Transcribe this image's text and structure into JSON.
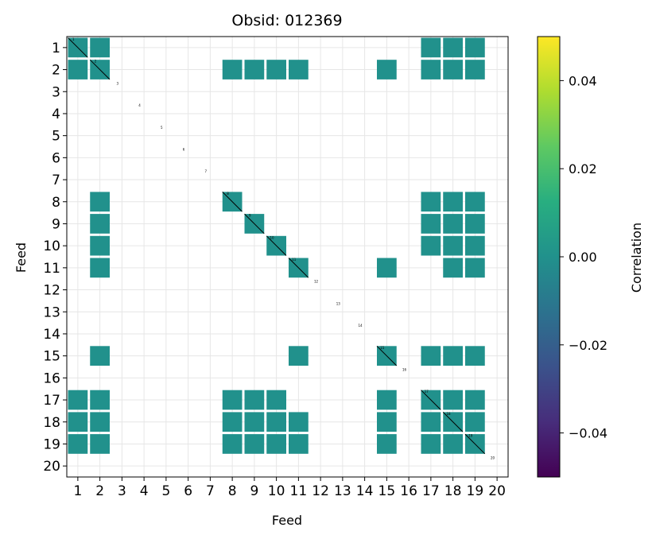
{
  "chart_data": {
    "type": "heatmap",
    "title": "Obsid: 012369",
    "xlabel": "Feed",
    "ylabel": "Feed",
    "feeds": [
      1,
      2,
      3,
      4,
      5,
      6,
      7,
      8,
      9,
      10,
      11,
      12,
      13,
      14,
      15,
      16,
      17,
      18,
      19,
      20
    ],
    "x_tick_labels": [
      "1",
      "2",
      "3",
      "4",
      "5",
      "6",
      "7",
      "8",
      "9",
      "10",
      "11",
      "12",
      "13",
      "14",
      "15",
      "16",
      "17",
      "18",
      "19",
      "20"
    ],
    "y_tick_labels": [
      "1",
      "2",
      "3",
      "4",
      "5",
      "6",
      "7",
      "8",
      "9",
      "10",
      "11",
      "12",
      "13",
      "14",
      "15",
      "16",
      "17",
      "18",
      "19",
      "20"
    ],
    "grid": true,
    "colorbar": {
      "label": "Correlation",
      "colormap": "viridis",
      "vmin": -0.05,
      "vmax": 0.05,
      "ticks": [
        0.04,
        0.02,
        0.0,
        -0.02,
        -0.04
      ],
      "tick_labels": [
        "0.04",
        "0.02",
        "0.00",
        "−0.02",
        "−0.04"
      ]
    },
    "cell_color": "#21918c",
    "cell_value": 0.0,
    "active_feed_blocks": [
      {
        "row": 1,
        "cols": [
          1,
          2,
          17,
          18,
          19
        ]
      },
      {
        "row": 2,
        "cols": [
          1,
          2,
          8,
          9,
          10,
          11,
          15,
          17,
          18,
          19
        ]
      },
      {
        "row": 8,
        "cols": [
          2,
          8,
          17,
          18,
          19
        ]
      },
      {
        "row": 9,
        "cols": [
          2,
          9,
          17,
          18,
          19
        ]
      },
      {
        "row": 10,
        "cols": [
          2,
          10,
          17,
          18,
          19
        ]
      },
      {
        "row": 11,
        "cols": [
          2,
          11,
          15,
          18,
          19
        ]
      },
      {
        "row": 15,
        "cols": [
          2,
          11,
          15,
          17,
          18,
          19
        ]
      },
      {
        "row": 17,
        "cols": [
          1,
          2,
          8,
          9,
          10,
          15,
          17,
          18,
          19
        ]
      },
      {
        "row": 18,
        "cols": [
          1,
          2,
          8,
          9,
          10,
          11,
          15,
          17,
          18,
          19
        ]
      },
      {
        "row": 19,
        "cols": [
          1,
          2,
          8,
          9,
          10,
          11,
          15,
          17,
          18,
          19
        ]
      }
    ]
  }
}
